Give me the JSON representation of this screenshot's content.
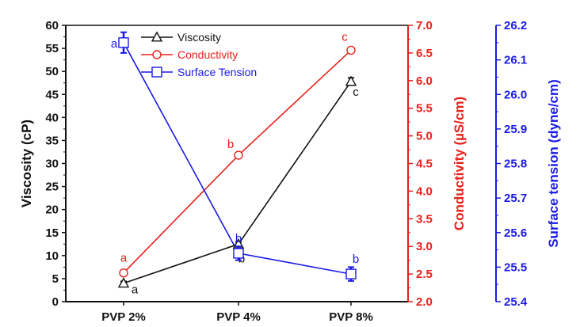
{
  "chart_data": {
    "type": "line",
    "categories": [
      "PVP 2%",
      "PVP 4%",
      "PVP 8%"
    ],
    "axes": {
      "left": {
        "label": "Viscosity (cP)",
        "min": 0,
        "max": 60,
        "step": 5,
        "ticks": [
          "0",
          "5",
          "10",
          "15",
          "20",
          "25",
          "30",
          "35",
          "40",
          "45",
          "50",
          "55",
          "60"
        ],
        "color": "#111111"
      },
      "right1": {
        "label": "Conductivity (µS/cm)",
        "min": 2.0,
        "max": 7.0,
        "ticks": [
          "2.0",
          "2.5",
          "3.0",
          "3.5",
          "4.0",
          "4.5",
          "5.0",
          "5.5",
          "6.0",
          "6.5",
          "7.0"
        ],
        "color": "#e8201a"
      },
      "right2": {
        "label": "Surface tension (dyne/cm)",
        "min": 25.4,
        "max": 26.2,
        "ticks": [
          "25.4",
          "25.5",
          "25.6",
          "25.7",
          "25.8",
          "25.9",
          "26.0",
          "26.1",
          "26.2"
        ],
        "color": "#1a1ae6"
      }
    },
    "series": [
      {
        "name": "Viscosity",
        "axis": "left",
        "marker": "triangle",
        "color": "#111111",
        "values": [
          4,
          12.5,
          47.8
        ],
        "errors": [
          0.4,
          0.5,
          0.8
        ],
        "labels": [
          "a",
          "b",
          "c"
        ]
      },
      {
        "name": "Conductivity",
        "axis": "right1",
        "marker": "circle",
        "color": "#e8201a",
        "values": [
          2.52,
          4.65,
          6.55
        ],
        "errors": [
          0.03,
          0.04,
          0.04
        ],
        "labels": [
          "a",
          "b",
          "c"
        ]
      },
      {
        "name": "Surface Tension",
        "axis": "right2",
        "marker": "square",
        "color": "#1a1ae6",
        "values": [
          26.15,
          25.54,
          25.48
        ],
        "errors": [
          0.03,
          0.02,
          0.02
        ],
        "labels": [
          "a",
          "b",
          "b"
        ]
      }
    ],
    "legend": {
      "position": "top-left",
      "entries": [
        "Viscosity",
        "Conductivity",
        "Surface Tension"
      ]
    },
    "grid": false
  }
}
